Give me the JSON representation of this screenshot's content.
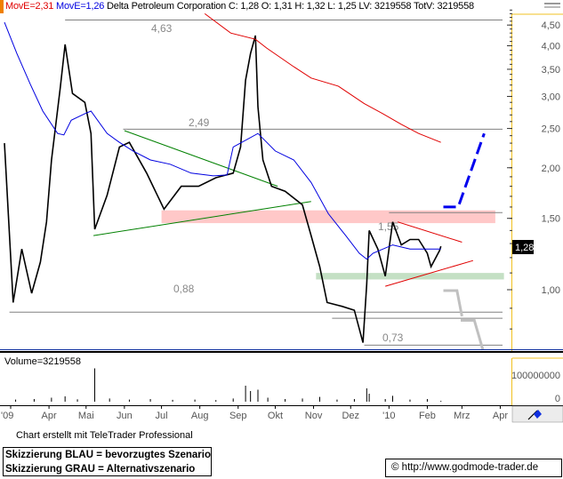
{
  "header": {
    "ma_red_label": "MovE=2,31",
    "ma_blue_label": "MovE=1,26",
    "title_stats": "Delta Petroleum Corporation C: 1,28 O: 1,31 H: 1,32 L: 1,25 LV: 3219558 TotV: 3219558"
  },
  "colors": {
    "ma_long": "#e00000",
    "ma_short": "#0000e0",
    "price": "#000000",
    "axis_border": "#f0c020",
    "resistance_zone": "#ffc8c8",
    "support_zone": "#c4e0c4",
    "scenario_preferred": "#0000ee",
    "scenario_alternative": "#c0c0c0",
    "triangle_green": "#008000",
    "triangle_red": "#e00000"
  },
  "chart_data": {
    "type": "line",
    "y_scale": "log",
    "ylim": [
      0.65,
      4.9
    ],
    "yticks": [
      "4,50",
      "4,00",
      "3,50",
      "3,00",
      "2,50",
      "2,00",
      "1,50",
      "1,00"
    ],
    "ytick_values": [
      4.5,
      4.0,
      3.5,
      3.0,
      2.5,
      2.0,
      1.5,
      1.0
    ],
    "xticks": [
      {
        "label": "'09",
        "date": "2009-03-01"
      },
      {
        "label": "Apr",
        "date": "2009-04-01"
      },
      {
        "label": "Mai",
        "date": "2009-05-01"
      },
      {
        "label": "Jun",
        "date": "2009-06-01"
      },
      {
        "label": "Jul",
        "date": "2009-07-01"
      },
      {
        "label": "Aug",
        "date": "2009-08-01"
      },
      {
        "label": "Sep",
        "date": "2009-09-01"
      },
      {
        "label": "Okt",
        "date": "2009-10-01"
      },
      {
        "label": "Nov",
        "date": "2009-11-01"
      },
      {
        "label": "Dez",
        "date": "2009-12-01"
      },
      {
        "label": "'10",
        "date": "2010-01-01"
      },
      {
        "label": "Feb",
        "date": "2010-02-01"
      },
      {
        "label": "Mrz",
        "date": "2010-03-01"
      },
      {
        "label": "Apr",
        "date": "2010-04-01"
      }
    ],
    "last_price_label": "1,28",
    "series": [
      {
        "name": "Delta Petroleum Corporation",
        "points": [
          [
            "2009-02-24",
            2.3
          ],
          [
            "2009-03-03",
            0.93
          ],
          [
            "2009-03-10",
            1.26
          ],
          [
            "2009-03-18",
            0.98
          ],
          [
            "2009-03-25",
            1.17
          ],
          [
            "2009-03-30",
            1.47
          ],
          [
            "2009-04-03",
            2.09
          ],
          [
            "2009-04-10",
            3.13
          ],
          [
            "2009-04-14",
            4.03
          ],
          [
            "2009-04-20",
            3.05
          ],
          [
            "2009-04-30",
            2.9
          ],
          [
            "2009-05-05",
            2.43
          ],
          [
            "2009-05-08",
            1.41
          ],
          [
            "2009-05-18",
            1.71
          ],
          [
            "2009-05-28",
            2.25
          ],
          [
            "2009-06-05",
            2.31
          ],
          [
            "2009-06-19",
            1.94
          ],
          [
            "2009-07-03",
            1.58
          ],
          [
            "2009-07-17",
            1.8
          ],
          [
            "2009-07-31",
            1.8
          ],
          [
            "2009-08-14",
            1.89
          ],
          [
            "2009-08-28",
            1.94
          ],
          [
            "2009-09-03",
            2.25
          ],
          [
            "2009-09-07",
            3.29
          ],
          [
            "2009-09-11",
            3.83
          ],
          [
            "2009-09-15",
            4.24
          ],
          [
            "2009-09-17",
            2.83
          ],
          [
            "2009-09-21",
            2.09
          ],
          [
            "2009-09-28",
            1.8
          ],
          [
            "2009-10-09",
            1.75
          ],
          [
            "2009-10-23",
            1.62
          ],
          [
            "2009-10-30",
            1.36
          ],
          [
            "2009-11-06",
            1.14
          ],
          [
            "2009-11-12",
            0.93
          ],
          [
            "2009-11-24",
            0.91
          ],
          [
            "2009-12-04",
            0.89
          ],
          [
            "2009-12-11",
            0.74
          ],
          [
            "2009-12-14",
            1.03
          ],
          [
            "2009-12-16",
            1.4
          ],
          [
            "2009-12-23",
            1.26
          ],
          [
            "2009-12-29",
            1.08
          ],
          [
            "2010-01-04",
            1.47
          ],
          [
            "2010-01-11",
            1.29
          ],
          [
            "2010-01-18",
            1.33
          ],
          [
            "2010-01-25",
            1.33
          ],
          [
            "2010-02-01",
            1.23
          ],
          [
            "2010-02-04",
            1.14
          ],
          [
            "2010-02-11",
            1.25
          ],
          [
            "2010-02-12",
            1.28
          ]
        ]
      },
      {
        "name": "MovE=2,31",
        "points": [
          [
            "2009-08-05",
            4.8
          ],
          [
            "2009-08-26",
            4.3
          ],
          [
            "2009-09-15",
            4.15
          ],
          [
            "2009-09-24",
            3.95
          ],
          [
            "2009-10-16",
            3.55
          ],
          [
            "2009-10-30",
            3.33
          ],
          [
            "2009-11-21",
            3.18
          ],
          [
            "2009-12-12",
            2.88
          ],
          [
            "2009-12-27",
            2.72
          ],
          [
            "2010-01-11",
            2.56
          ],
          [
            "2010-01-25",
            2.43
          ],
          [
            "2010-02-12",
            2.31
          ]
        ]
      },
      {
        "name": "MovE=1,26",
        "points": [
          [
            "2009-02-24",
            4.57
          ],
          [
            "2009-03-06",
            3.83
          ],
          [
            "2009-03-17",
            3.21
          ],
          [
            "2009-03-27",
            2.76
          ],
          [
            "2009-04-08",
            2.43
          ],
          [
            "2009-04-13",
            2.41
          ],
          [
            "2009-04-19",
            2.62
          ],
          [
            "2009-04-30",
            2.72
          ],
          [
            "2009-05-05",
            2.76
          ],
          [
            "2009-05-18",
            2.43
          ],
          [
            "2009-05-28",
            2.31
          ],
          [
            "2009-06-08",
            2.2
          ],
          [
            "2009-06-22",
            2.09
          ],
          [
            "2009-07-08",
            2.04
          ],
          [
            "2009-07-25",
            1.94
          ],
          [
            "2009-08-12",
            1.91
          ],
          [
            "2009-08-23",
            1.92
          ],
          [
            "2009-08-28",
            2.25
          ],
          [
            "2009-09-17",
            2.43
          ],
          [
            "2009-10-01",
            2.2
          ],
          [
            "2009-10-16",
            2.09
          ],
          [
            "2009-10-30",
            1.84
          ],
          [
            "2009-11-13",
            1.54
          ],
          [
            "2009-11-27",
            1.36
          ],
          [
            "2009-12-08",
            1.23
          ],
          [
            "2009-12-14",
            1.19
          ],
          [
            "2009-12-19",
            1.23
          ],
          [
            "2010-01-04",
            1.29
          ],
          [
            "2010-01-18",
            1.26
          ],
          [
            "2010-02-01",
            1.26
          ],
          [
            "2010-02-12",
            1.26
          ]
        ]
      }
    ],
    "levels": [
      {
        "label": "4,63",
        "price": 4.63,
        "from": "2009-04-14"
      },
      {
        "label": "2,49",
        "price": 2.49,
        "from": "2009-05-31"
      },
      {
        "label": "1,55",
        "price": 1.55,
        "from": "2010-01-01"
      },
      {
        "label": "0,88",
        "price": 0.88,
        "from": "2009-02-28"
      },
      {
        "label": "",
        "price": 0.85,
        "from": "2009-11-16"
      },
      {
        "label": "0,73",
        "price": 0.73,
        "from": "2009-12-12"
      }
    ],
    "zones": [
      {
        "kind": "resistance",
        "low": 1.46,
        "high": 1.57,
        "from": "2009-07-01",
        "to": "2010-03-28"
      },
      {
        "kind": "support",
        "low": 1.06,
        "high": 1.1,
        "from": "2009-11-03",
        "to": "2010-04-04"
      }
    ],
    "trendlines": [
      {
        "kind": "triangle_green",
        "points": [
          [
            "2009-06-01",
            2.47
          ],
          [
            "2009-10-03",
            1.8
          ]
        ]
      },
      {
        "kind": "triangle_green",
        "points": [
          [
            "2009-05-07",
            1.36
          ],
          [
            "2009-10-30",
            1.65
          ]
        ]
      },
      {
        "kind": "triangle_red",
        "points": [
          [
            "2010-01-08",
            1.47
          ],
          [
            "2010-03-01",
            1.31
          ]
        ]
      },
      {
        "kind": "triangle_red",
        "points": [
          [
            "2009-12-29",
            1.02
          ],
          [
            "2010-03-10",
            1.18
          ]
        ]
      }
    ],
    "scenarios": [
      {
        "kind": "preferred",
        "points": [
          [
            "2010-02-14",
            1.6
          ],
          [
            "2010-02-26",
            1.6
          ],
          [
            "2010-03-19",
            2.43
          ]
        ]
      },
      {
        "kind": "alternative",
        "points": [
          [
            "2010-02-14",
            0.995
          ],
          [
            "2010-02-25",
            0.995
          ],
          [
            "2010-03-01",
            0.86
          ]
        ]
      },
      {
        "kind": "alternative",
        "points": [
          [
            "2010-02-28",
            0.84
          ],
          [
            "2010-03-11",
            0.84
          ],
          [
            "2010-03-18",
            0.71
          ]
        ]
      }
    ],
    "volume": {
      "label": "Volume=3219558",
      "yticks": [
        "100000000",
        "0"
      ],
      "ytick_values": [
        100000000,
        0
      ],
      "points": [
        [
          "2009-03-05",
          8000000
        ],
        [
          "2009-03-20",
          10000000
        ],
        [
          "2009-04-03",
          15000000
        ],
        [
          "2009-04-14",
          20000000
        ],
        [
          "2009-04-24",
          9000000
        ],
        [
          "2009-05-08",
          125000000
        ],
        [
          "2009-05-20",
          12000000
        ],
        [
          "2009-06-05",
          8000000
        ],
        [
          "2009-06-22",
          10000000
        ],
        [
          "2009-07-10",
          7000000
        ],
        [
          "2009-07-28",
          8000000
        ],
        [
          "2009-08-14",
          6000000
        ],
        [
          "2009-08-28",
          12000000
        ],
        [
          "2009-09-07",
          60000000
        ],
        [
          "2009-09-11",
          40000000
        ],
        [
          "2009-09-17",
          45000000
        ],
        [
          "2009-09-25",
          15000000
        ],
        [
          "2009-10-09",
          10000000
        ],
        [
          "2009-10-23",
          12000000
        ],
        [
          "2009-11-06",
          18000000
        ],
        [
          "2009-11-20",
          8000000
        ],
        [
          "2009-12-04",
          10000000
        ],
        [
          "2009-12-14",
          50000000
        ],
        [
          "2009-12-16",
          30000000
        ],
        [
          "2009-12-29",
          10000000
        ],
        [
          "2010-01-04",
          22000000
        ],
        [
          "2010-01-18",
          8000000
        ],
        [
          "2010-02-01",
          10000000
        ],
        [
          "2010-02-12",
          3219558
        ]
      ]
    }
  },
  "footer": {
    "credit": "Chart erstellt mit TeleTrader Professional",
    "legend_blue": "Skizzierung BLAU = bevorzugtes Szenario",
    "legend_gray": "Skizzierung GRAU = Alternativszenario",
    "url": "© http://www.godmode-trader.de"
  }
}
